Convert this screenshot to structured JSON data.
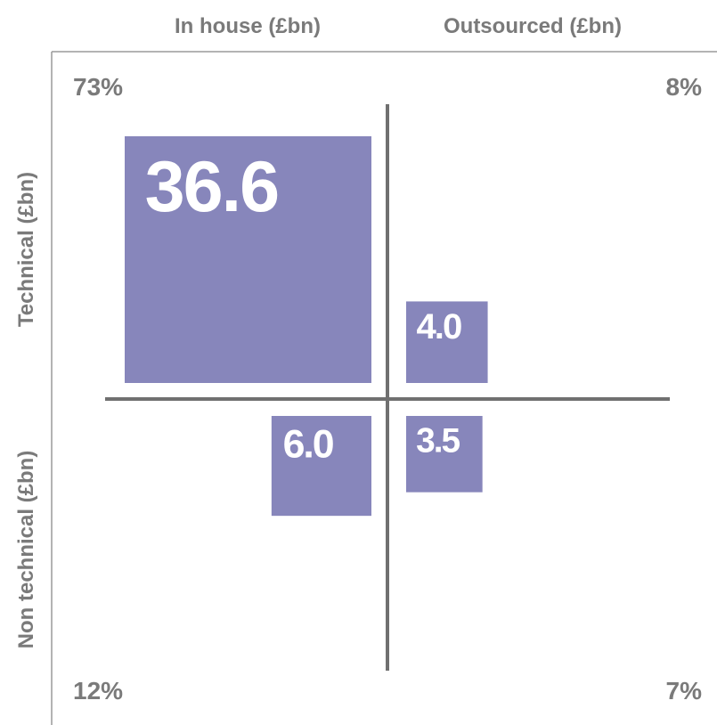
{
  "chart_data": {
    "type": "quadrant",
    "columns": [
      "In house (£bn)",
      "Outsourced (£bn)"
    ],
    "rows": [
      "Technical (£bn)",
      "Non technical (£bn)"
    ],
    "values": [
      36.6,
      4.0,
      6.0,
      3.5
    ],
    "value_labels": [
      "36.6",
      "4.0",
      "6.0",
      "3.5"
    ],
    "shares": [
      73,
      8,
      12,
      7
    ],
    "share_labels": [
      "73%",
      "8%",
      "12%",
      "7%"
    ],
    "color": "#8786bb"
  }
}
